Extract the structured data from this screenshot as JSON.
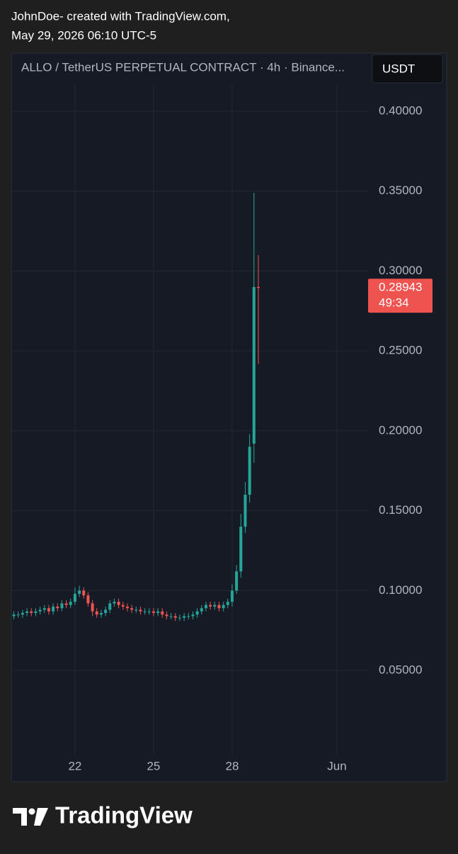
{
  "header": {
    "line1": "JohnDoe- created with TradingView.com,",
    "line2": "May 29, 2026 06:10 UTC-5"
  },
  "chart_data": {
    "type": "candlestick",
    "title": "ALLO / TetherUS PERPETUAL CONTRACT · 4h · Binance...",
    "currency": "USDT",
    "x": [
      19.667,
      19.833,
      20,
      20.167,
      20.333,
      20.5,
      20.667,
      20.833,
      21,
      21.167,
      21.333,
      21.5,
      21.667,
      21.833,
      22,
      22.167,
      22.333,
      22.5,
      22.667,
      22.833,
      23,
      23.167,
      23.333,
      23.5,
      23.667,
      23.833,
      24,
      24.167,
      24.333,
      24.5,
      24.667,
      24.833,
      25,
      25.167,
      25.333,
      25.5,
      25.667,
      25.833,
      26,
      26.167,
      26.333,
      26.5,
      26.667,
      26.833,
      27,
      27.167,
      27.333,
      27.5,
      27.667,
      27.833,
      28,
      28.167,
      28.333,
      28.5,
      28.667,
      28.833,
      29
    ],
    "open": [
      0.084,
      0.085,
      0.085,
      0.086,
      0.087,
      0.086,
      0.087,
      0.088,
      0.089,
      0.087,
      0.09,
      0.089,
      0.092,
      0.091,
      0.093,
      0.098,
      0.1,
      0.097,
      0.092,
      0.087,
      0.085,
      0.086,
      0.088,
      0.092,
      0.093,
      0.091,
      0.09,
      0.089,
      0.088,
      0.088,
      0.087,
      0.087,
      0.087,
      0.086,
      0.087,
      0.085,
      0.084,
      0.084,
      0.083,
      0.083,
      0.084,
      0.084,
      0.085,
      0.087,
      0.089,
      0.091,
      0.09,
      0.091,
      0.089,
      0.091,
      0.093,
      0.1,
      0.112,
      0.14,
      0.16,
      0.192,
      0.29
    ],
    "high": [
      0.087,
      0.087,
      0.088,
      0.089,
      0.089,
      0.089,
      0.09,
      0.091,
      0.091,
      0.092,
      0.092,
      0.094,
      0.094,
      0.095,
      0.102,
      0.103,
      0.102,
      0.099,
      0.094,
      0.089,
      0.088,
      0.09,
      0.094,
      0.095,
      0.095,
      0.093,
      0.092,
      0.091,
      0.09,
      0.09,
      0.089,
      0.089,
      0.089,
      0.089,
      0.089,
      0.087,
      0.086,
      0.086,
      0.085,
      0.086,
      0.086,
      0.087,
      0.089,
      0.091,
      0.093,
      0.093,
      0.093,
      0.093,
      0.093,
      0.095,
      0.104,
      0.116,
      0.148,
      0.168,
      0.198,
      0.349,
      0.31
    ],
    "low": [
      0.082,
      0.083,
      0.083,
      0.084,
      0.084,
      0.084,
      0.085,
      0.086,
      0.085,
      0.085,
      0.087,
      0.087,
      0.089,
      0.089,
      0.091,
      0.096,
      0.095,
      0.09,
      0.084,
      0.083,
      0.083,
      0.084,
      0.086,
      0.09,
      0.089,
      0.088,
      0.087,
      0.086,
      0.086,
      0.085,
      0.085,
      0.085,
      0.084,
      0.084,
      0.083,
      0.082,
      0.082,
      0.081,
      0.081,
      0.081,
      0.082,
      0.082,
      0.083,
      0.085,
      0.087,
      0.088,
      0.088,
      0.087,
      0.087,
      0.089,
      0.09,
      0.098,
      0.108,
      0.136,
      0.155,
      0.18,
      0.242
    ],
    "close": [
      0.085,
      0.085,
      0.086,
      0.087,
      0.086,
      0.087,
      0.088,
      0.089,
      0.087,
      0.09,
      0.089,
      0.092,
      0.091,
      0.093,
      0.098,
      0.1,
      0.097,
      0.092,
      0.087,
      0.085,
      0.086,
      0.088,
      0.092,
      0.093,
      0.091,
      0.09,
      0.089,
      0.088,
      0.088,
      0.087,
      0.087,
      0.087,
      0.086,
      0.087,
      0.085,
      0.084,
      0.084,
      0.083,
      0.083,
      0.084,
      0.084,
      0.085,
      0.087,
      0.089,
      0.091,
      0.09,
      0.091,
      0.089,
      0.091,
      0.093,
      0.1,
      0.112,
      0.14,
      0.16,
      0.19,
      0.29,
      0.28943
    ],
    "up_color": "#26a69a",
    "down_color": "#ef5350",
    "xlim": [
      19.57,
      33.19
    ],
    "xticks": [
      22,
      25,
      28,
      {
        "value": 32,
        "label": "Jun"
      }
    ],
    "ylim": [
      0,
      0.4164
    ],
    "yticks": [
      {
        "value": 0.05,
        "label": "0.05000"
      },
      {
        "value": 0.1,
        "label": "0.10000"
      },
      {
        "value": 0.15,
        "label": "0.15000"
      },
      {
        "value": 0.2,
        "label": "0.20000"
      },
      {
        "value": 0.25,
        "label": "0.25000"
      },
      {
        "value": 0.3,
        "label": "0.30000"
      },
      {
        "value": 0.35,
        "label": "0.35000"
      },
      {
        "value": 0.4,
        "label": "0.40000"
      }
    ],
    "grid": true,
    "countdown": "49:34"
  },
  "footer": {
    "brand": "TradingView"
  }
}
